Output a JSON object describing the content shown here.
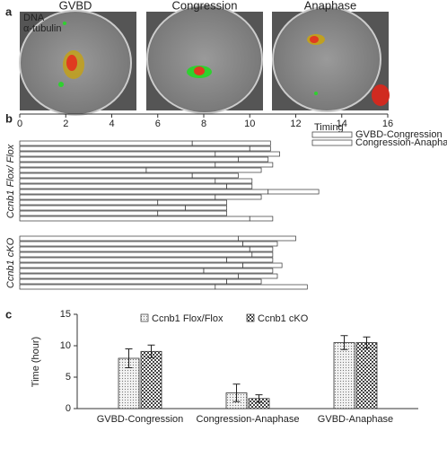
{
  "chart_data": [
    {
      "type": "image",
      "panel": "a",
      "images": [
        {
          "title": "GVBD"
        },
        {
          "title": "Congression"
        },
        {
          "title": "Anaphase"
        }
      ],
      "channels": [
        {
          "name": "DNA",
          "color": "#e0322a"
        },
        {
          "name": "α-tubulin",
          "color": "#2fd12f"
        }
      ]
    },
    {
      "type": "stacked-barh",
      "panel": "b",
      "xlim": [
        0,
        16
      ],
      "xticks": [
        0,
        2,
        4,
        6,
        8,
        10,
        12,
        14,
        16
      ],
      "legend_title": "Timing",
      "series": [
        {
          "name": "GVBD-Congression",
          "color": "#ffffff",
          "values": [
            7.5,
            10.0,
            8.5,
            9.5,
            8.5,
            5.5,
            7.5,
            8.5,
            9.0,
            10.8,
            8.5,
            6.0,
            7.2,
            6.0,
            10.0,
            9.5,
            9.7,
            10.0,
            10.1,
            9.0,
            9.7,
            8.0,
            9.5,
            9.0,
            8.5
          ]
        },
        {
          "name": "Congression-Anaphase",
          "color": "#ffffff",
          "values": [
            3.4,
            0.9,
            2.8,
            1.3,
            2.5,
            5.0,
            2.0,
            1.6,
            1.1,
            2.2,
            2.0,
            3.0,
            1.8,
            3.0,
            1.0,
            2.5,
            1.5,
            1.0,
            0.9,
            2.0,
            1.7,
            3.0,
            1.7,
            1.5,
            4.0
          ]
        }
      ],
      "groups": [
        {
          "label": "Ccnb1 Flox/ Flox",
          "categories": [
            null,
            null,
            null,
            null,
            null,
            null,
            null,
            null,
            null,
            null,
            null,
            null,
            null,
            null,
            null
          ]
        },
        {
          "label": "Ccnb1 cKO",
          "categories": [
            null,
            null,
            null,
            null,
            null,
            null,
            null,
            null,
            null,
            null
          ]
        }
      ]
    },
    {
      "type": "bar",
      "panel": "c",
      "ylabel": "Time (hour)",
      "categories": [
        "GVBD-Congression",
        "Congression-Anaphase",
        "GVBD-Anaphase"
      ],
      "ylim": [
        0,
        15
      ],
      "yticks": [
        0,
        5,
        10,
        15
      ],
      "series": [
        {
          "name": "Ccnb1 Flox/Flox",
          "color": "#e6e6e6",
          "pattern": "dots",
          "values": [
            8.0,
            2.5,
            10.5
          ],
          "errors": [
            1.5,
            1.4,
            1.1
          ]
        },
        {
          "name": "Ccnb1 cKO",
          "color": "#9a9a9a",
          "pattern": "checker",
          "values": [
            9.1,
            1.6,
            10.5
          ],
          "errors": [
            1.0,
            0.6,
            0.9
          ]
        }
      ]
    }
  ]
}
